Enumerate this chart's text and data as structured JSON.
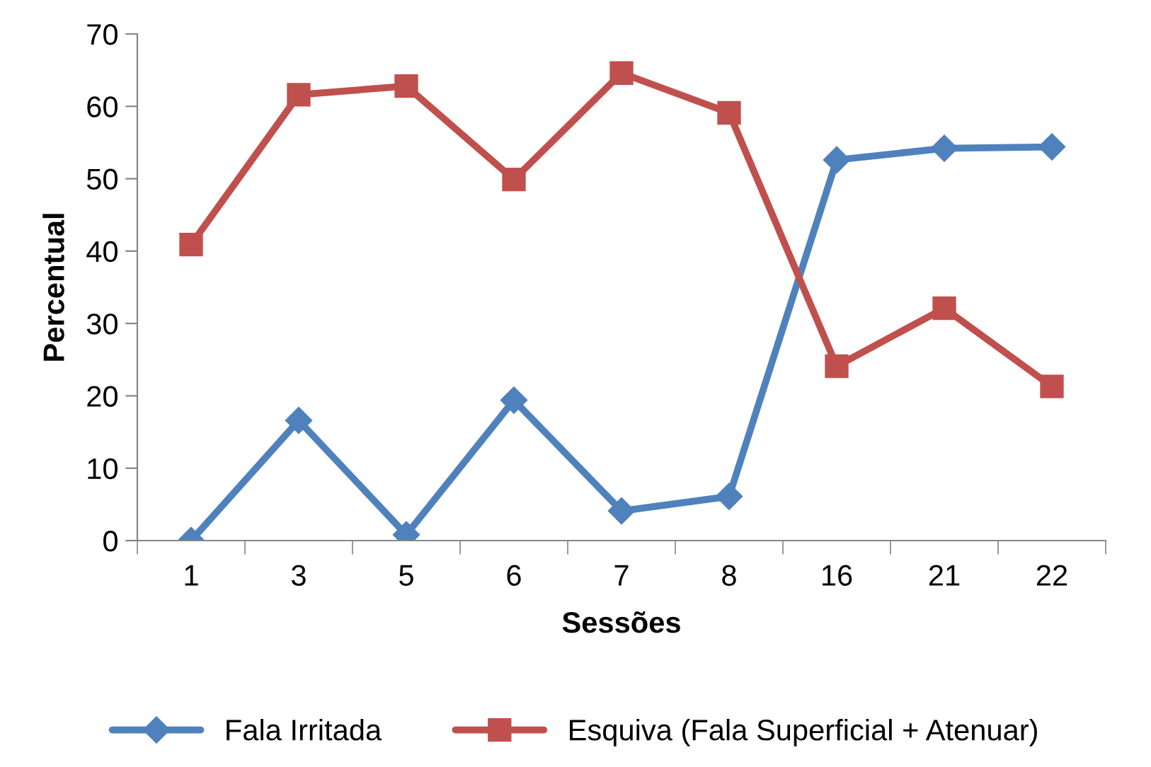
{
  "chart_data": {
    "type": "line",
    "xlabel": "Sessões",
    "ylabel": "Percentual",
    "categories": [
      "1",
      "3",
      "5",
      "6",
      "7",
      "8",
      "16",
      "21",
      "22"
    ],
    "series": [
      {
        "name": "Fala Irritada",
        "color": "#4f81bd",
        "values": [
          0,
          16.6,
          0.8,
          19.4,
          4.1,
          6.1,
          52.6,
          54.2,
          54.4
        ]
      },
      {
        "name": "Esquiva (Fala Superficial + Atenuar)",
        "color": "#c0504d",
        "values": [
          40.9,
          61.6,
          62.8,
          49.9,
          64.6,
          59.1,
          24.1,
          32.1,
          21.3
        ],
        "marker": "square"
      }
    ],
    "marker": "diamond",
    "line_style": "solid",
    "ylim": [
      0,
      70
    ],
    "yticks": [
      0,
      10,
      20,
      30,
      40,
      50,
      60,
      70
    ],
    "grid": false,
    "legend": "bottom"
  }
}
